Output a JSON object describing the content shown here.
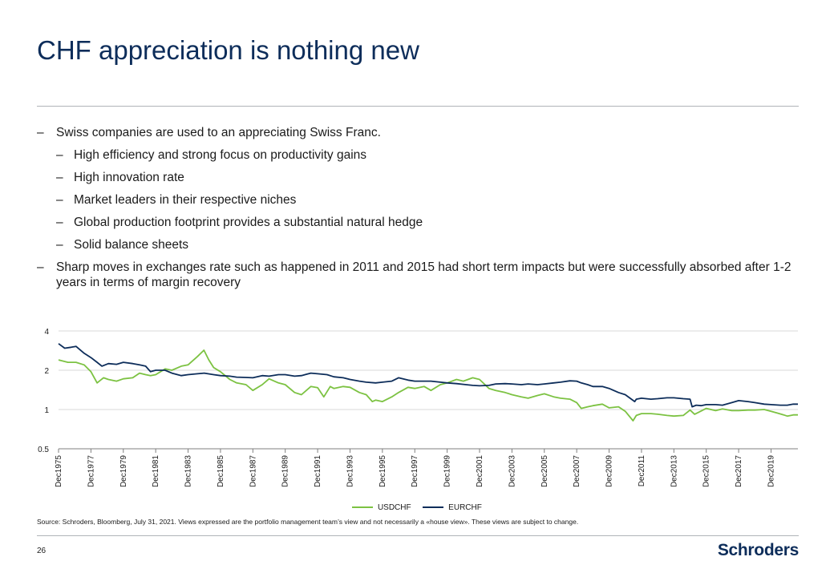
{
  "slide": {
    "title": "CHF appreciation is nothing new",
    "page_number": "26",
    "logo_text": "Schroders",
    "source": "Source: Schroders, Bloomberg, July 31, 2021. Views expressed are the portfolio management team’s view and not necessarily a «house view». These views are subject to change."
  },
  "bullets": {
    "dash": "–",
    "b1": "Swiss companies are used to an appreciating Swiss Franc.",
    "b1_subs": [
      "High efficiency and strong focus on productivity gains",
      "High innovation rate",
      "Market leaders in their respective niches",
      "Global production footprint provides a substantial natural hedge",
      "Solid balance sheets"
    ],
    "b2": "Sharp moves in exchanges rate such as happened in 2011 and 2015 had short term impacts but were successfully absorbed after 1-2 years in terms of margin recovery"
  },
  "colors": {
    "usdchf": "#7cc242",
    "eurchf": "#0d2d5a",
    "grid": "#d9d9d9",
    "title": "#0d2d5a"
  },
  "chart_data": {
    "type": "line",
    "yscale": "log",
    "ylim": [
      0.5,
      4
    ],
    "yticks": [
      0.5,
      1,
      2,
      4
    ],
    "ytick_labels": [
      "0.5",
      "1",
      "2",
      "4"
    ],
    "xlim": [
      1975.92,
      2021.58
    ],
    "xticks": [
      1975.92,
      1977.92,
      1979.92,
      1981.92,
      1983.92,
      1985.92,
      1987.92,
      1989.92,
      1991.92,
      1993.92,
      1995.92,
      1997.92,
      1999.92,
      2001.92,
      2003.92,
      2005.92,
      2007.92,
      2009.92,
      2011.92,
      2013.92,
      2015.92,
      2017.92,
      2019.92
    ],
    "xtick_labels": [
      "Dec1975",
      "Dec1977",
      "Dec1979",
      "Dec1981",
      "Dec1983",
      "Dec1985",
      "Dec1987",
      "Dec1989",
      "Dec1991",
      "Dec1993",
      "Dec1995",
      "Dec1997",
      "Dec1999",
      "Dec2001",
      "Dec2003",
      "Dec2005",
      "Dec2007",
      "Dec2009",
      "Dec2011",
      "Dec2013",
      "Dec2015",
      "Dec2017",
      "Dec2019"
    ],
    "series": [
      {
        "name": "USDCHF",
        "x": [
          1975.92,
          1976.5,
          1977.0,
          1977.5,
          1977.92,
          1978.3,
          1978.7,
          1979.0,
          1979.5,
          1979.92,
          1980.5,
          1980.92,
          1981.3,
          1981.6,
          1981.92,
          1982.5,
          1982.92,
          1983.5,
          1983.92,
          1984.5,
          1984.9,
          1985.2,
          1985.5,
          1985.92,
          1986.5,
          1986.92,
          1987.5,
          1987.92,
          1988.5,
          1988.92,
          1989.5,
          1989.92,
          1990.5,
          1990.92,
          1991.5,
          1991.92,
          1992.3,
          1992.7,
          1992.92,
          1993.5,
          1993.92,
          1994.5,
          1994.92,
          1995.3,
          1995.5,
          1995.92,
          1996.5,
          1996.92,
          1997.5,
          1997.92,
          1998.5,
          1998.92,
          1999.5,
          1999.92,
          2000.5,
          2000.92,
          2001.5,
          2001.92,
          2002.5,
          2002.92,
          2003.5,
          2003.92,
          2004.5,
          2004.92,
          2005.5,
          2005.92,
          2006.5,
          2006.92,
          2007.5,
          2007.92,
          2008.2,
          2008.6,
          2008.92,
          2009.5,
          2009.92,
          2010.5,
          2010.92,
          2011.4,
          2011.6,
          2011.92,
          2012.5,
          2012.92,
          2013.5,
          2013.92,
          2014.5,
          2014.92,
          2015.2,
          2015.5,
          2015.92,
          2016.5,
          2016.92,
          2017.5,
          2017.92,
          2018.5,
          2018.92,
          2019.5,
          2019.92,
          2020.3,
          2020.7,
          2020.92,
          2021.3,
          2021.58
        ],
        "values": [
          2.4,
          2.3,
          2.3,
          2.2,
          1.95,
          1.6,
          1.75,
          1.7,
          1.65,
          1.72,
          1.75,
          1.9,
          1.85,
          1.82,
          1.85,
          2.05,
          2.0,
          2.15,
          2.2,
          2.55,
          2.85,
          2.4,
          2.1,
          1.95,
          1.7,
          1.6,
          1.55,
          1.4,
          1.55,
          1.72,
          1.6,
          1.55,
          1.35,
          1.3,
          1.5,
          1.47,
          1.25,
          1.5,
          1.45,
          1.5,
          1.48,
          1.35,
          1.3,
          1.15,
          1.18,
          1.15,
          1.25,
          1.35,
          1.48,
          1.45,
          1.5,
          1.4,
          1.55,
          1.6,
          1.7,
          1.65,
          1.75,
          1.7,
          1.45,
          1.4,
          1.35,
          1.3,
          1.25,
          1.22,
          1.28,
          1.32,
          1.25,
          1.22,
          1.2,
          1.13,
          1.02,
          1.05,
          1.07,
          1.1,
          1.03,
          1.05,
          0.97,
          0.82,
          0.9,
          0.93,
          0.93,
          0.92,
          0.9,
          0.89,
          0.9,
          0.99,
          0.92,
          0.96,
          1.02,
          0.98,
          1.01,
          0.98,
          0.98,
          0.99,
          0.99,
          1.0,
          0.97,
          0.94,
          0.91,
          0.89,
          0.91,
          0.91
        ]
      },
      {
        "name": "EURCHF",
        "x": [
          1975.92,
          1976.3,
          1976.7,
          1977.0,
          1977.5,
          1977.92,
          1978.3,
          1978.6,
          1979.0,
          1979.5,
          1979.92,
          1980.5,
          1980.92,
          1981.3,
          1981.6,
          1981.92,
          1982.5,
          1982.92,
          1983.5,
          1983.92,
          1984.5,
          1984.92,
          1985.5,
          1985.92,
          1986.5,
          1986.92,
          1987.5,
          1987.92,
          1988.5,
          1988.92,
          1989.5,
          1989.92,
          1990.5,
          1990.92,
          1991.5,
          1991.92,
          1992.5,
          1992.92,
          1993.5,
          1993.92,
          1994.5,
          1994.92,
          1995.5,
          1995.92,
          1996.5,
          1996.92,
          1997.5,
          1997.92,
          1998.5,
          1998.92,
          1999.5,
          1999.92,
          2000.5,
          2000.92,
          2001.5,
          2001.92,
          2002.5,
          2002.92,
          2003.5,
          2003.92,
          2004.5,
          2004.92,
          2005.5,
          2005.92,
          2006.5,
          2006.92,
          2007.5,
          2007.92,
          2008.2,
          2008.6,
          2008.92,
          2009.5,
          2009.92,
          2010.5,
          2010.92,
          2011.5,
          2011.6,
          2011.92,
          2012.5,
          2012.92,
          2013.5,
          2013.92,
          2014.5,
          2014.92,
          2015.05,
          2015.3,
          2015.6,
          2015.92,
          2016.5,
          2016.92,
          2017.5,
          2017.92,
          2018.5,
          2018.92,
          2019.5,
          2019.92,
          2020.5,
          2020.92,
          2021.3,
          2021.58
        ],
        "values": [
          3.2,
          2.95,
          3.0,
          3.05,
          2.7,
          2.5,
          2.3,
          2.15,
          2.25,
          2.22,
          2.3,
          2.25,
          2.2,
          2.15,
          1.95,
          2.0,
          2.0,
          1.9,
          1.82,
          1.85,
          1.88,
          1.9,
          1.85,
          1.82,
          1.8,
          1.77,
          1.76,
          1.75,
          1.82,
          1.8,
          1.85,
          1.85,
          1.8,
          1.82,
          1.9,
          1.88,
          1.85,
          1.78,
          1.75,
          1.7,
          1.65,
          1.62,
          1.6,
          1.62,
          1.65,
          1.75,
          1.68,
          1.65,
          1.65,
          1.65,
          1.62,
          1.6,
          1.58,
          1.56,
          1.53,
          1.52,
          1.53,
          1.57,
          1.58,
          1.57,
          1.55,
          1.57,
          1.55,
          1.57,
          1.6,
          1.62,
          1.66,
          1.65,
          1.6,
          1.55,
          1.5,
          1.5,
          1.45,
          1.35,
          1.3,
          1.15,
          1.2,
          1.22,
          1.2,
          1.21,
          1.23,
          1.23,
          1.21,
          1.2,
          1.05,
          1.08,
          1.07,
          1.09,
          1.09,
          1.08,
          1.13,
          1.17,
          1.15,
          1.13,
          1.1,
          1.09,
          1.08,
          1.08,
          1.1,
          1.1
        ]
      }
    ]
  }
}
